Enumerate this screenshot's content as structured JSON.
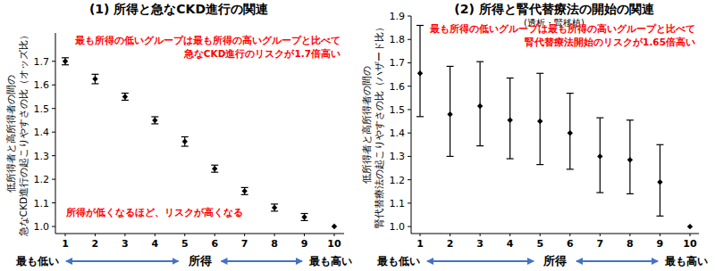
{
  "chart_data": [
    {
      "type": "scatter",
      "title": "(1) 所得と急なCKD進行の関連",
      "ylabel": [
        "低所得者と高所得者の間の",
        "急なCKD進行の起こりやすさの比（オッズ比）"
      ],
      "xlabel": "所得",
      "x_end_labels": [
        "最も低い",
        "最も高い"
      ],
      "categories": [
        "1",
        "2",
        "3",
        "4",
        "5",
        "6",
        "7",
        "8",
        "9",
        "10"
      ],
      "series": [
        {
          "color": "#000000",
          "marker": "diamond",
          "values": [
            1.7,
            1.625,
            1.55,
            1.45,
            1.36,
            1.245,
            1.15,
            1.08,
            1.04,
            1.0
          ],
          "lower": [
            1.685,
            1.605,
            1.535,
            1.435,
            1.34,
            1.23,
            1.135,
            1.065,
            1.025,
            null
          ],
          "upper": [
            1.715,
            1.645,
            1.565,
            1.465,
            1.38,
            1.26,
            1.165,
            1.095,
            1.055,
            null
          ]
        }
      ],
      "ylim": [
        0.97,
        1.82
      ],
      "yticks": [
        {
          "value": 1.0,
          "label": "1.0"
        },
        1.1,
        1.2,
        1.3,
        1.4,
        1.5,
        1.6,
        1.7
      ],
      "grid": false,
      "annotations": [
        [
          "最も所得の低いグループは最も所得の高いグループと比べて",
          "急なCKD進行のリスクが1.7倍高い"
        ],
        [
          "所得が低くなるほど、リスクが高くなる"
        ]
      ]
    },
    {
      "type": "scatter",
      "title": "(2) 所得と腎代替療法の開始の関連",
      "subtitle": "(透析・腎移植)",
      "ylabel": [
        "低所得者と高所得者の間の",
        "腎代替療法の起こりやすさの比（ハザード比）"
      ],
      "xlabel": "所得",
      "x_end_labels": [
        "最も低い",
        "最も高い"
      ],
      "categories": [
        "1",
        "2",
        "3",
        "4",
        "5",
        "6",
        "7",
        "8",
        "9",
        "10"
      ],
      "series": [
        {
          "color": "#000000",
          "marker": "diamond",
          "values": [
            1.655,
            1.48,
            1.515,
            1.455,
            1.45,
            1.4,
            1.3,
            1.285,
            1.19,
            1.0
          ],
          "lower": [
            1.47,
            1.3,
            1.345,
            1.29,
            1.265,
            1.245,
            1.145,
            1.14,
            1.045,
            null
          ],
          "upper": [
            1.86,
            1.685,
            1.705,
            1.635,
            1.655,
            1.57,
            1.465,
            1.455,
            1.35,
            null
          ]
        }
      ],
      "ylim": [
        0.97,
        1.9
      ],
      "yticks": [
        {
          "value": 1.0,
          "label": "1.0"
        },
        1.1,
        1.2,
        1.3,
        1.4,
        1.5,
        1.6,
        1.7,
        1.8,
        1.9
      ],
      "grid": false,
      "annotations": [
        [
          "最も所得の低いグループは最も所得の高いグループと比べて",
          "腎代替療法開始のリスクが1.65倍高い"
        ]
      ]
    }
  ]
}
